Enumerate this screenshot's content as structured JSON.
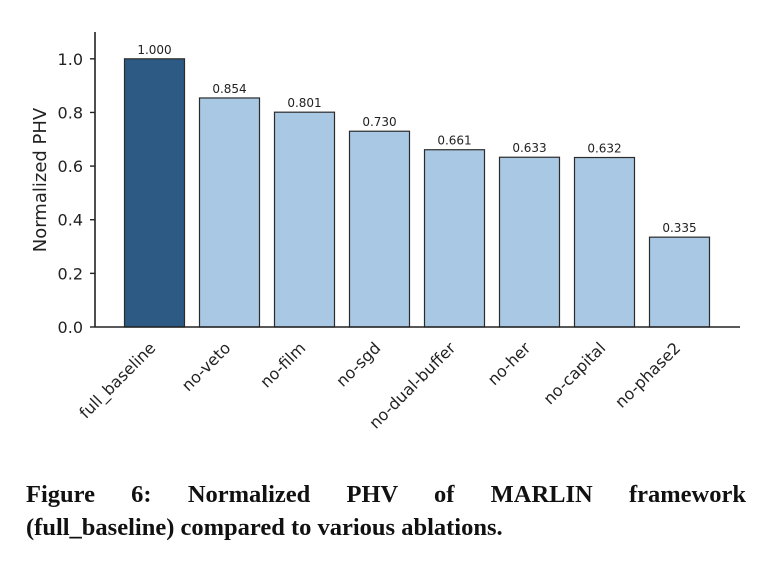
{
  "chart_data": {
    "type": "bar",
    "categories": [
      "full_baseline",
      "no-veto",
      "no-film",
      "no-sgd",
      "no-dual-buffer",
      "no-her",
      "no-capital",
      "no-phase2"
    ],
    "values": [
      1.0,
      0.854,
      0.801,
      0.73,
      0.661,
      0.633,
      0.632,
      0.335
    ],
    "value_labels": [
      "1.000",
      "0.854",
      "0.801",
      "0.730",
      "0.661",
      "0.633",
      "0.632",
      "0.335"
    ],
    "ylabel": "Normalized PHV",
    "xlabel": "",
    "ylim": [
      0,
      1.1
    ],
    "yticks": [
      0.0,
      0.2,
      0.4,
      0.6,
      0.8,
      1.0
    ],
    "ytick_labels": [
      "0.0",
      "0.2",
      "0.4",
      "0.6",
      "0.8",
      "1.0"
    ],
    "grid": false,
    "colors": {
      "highlight_bar": "#2c5a84",
      "bar": "#a9c8e4",
      "bar_edge": "#2b2b2b",
      "axis": "#222222"
    }
  },
  "caption": {
    "line1": "Figure 6: Normalized PHV of MARLIN framework",
    "line2": "(full_baseline) compared to various ablations."
  }
}
